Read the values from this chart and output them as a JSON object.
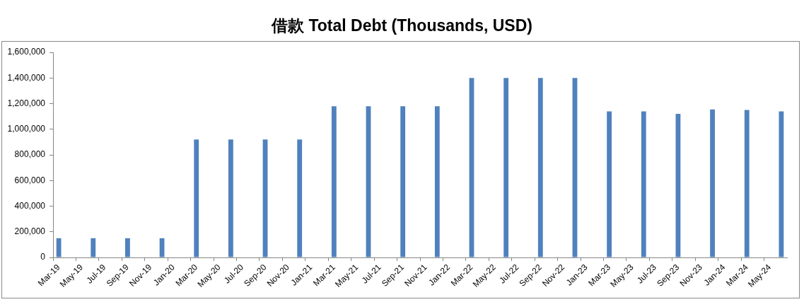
{
  "chart_data": {
    "type": "bar",
    "title": "借款 Total Debt (Thousands, USD)",
    "categories": [
      "Mar-19",
      null,
      "May-19",
      null,
      "Jul-19",
      null,
      "Sep-19",
      null,
      "Nov-19",
      null,
      "Jan-20",
      null,
      "Mar-20",
      null,
      "May-20",
      null,
      "Jul-20",
      null,
      "Sep-20",
      null,
      "Nov-20",
      null,
      "Jan-21",
      null,
      "Mar-21",
      null,
      "May-21",
      null,
      "Jul-21",
      null,
      "Sep-21",
      null,
      "Nov-21",
      null,
      "Jan-22",
      null,
      "Mar-22",
      null,
      "May-22",
      null,
      "Jul-22",
      null,
      "Sep-22",
      null,
      "Nov-22",
      null,
      "Jan-23",
      null,
      "Mar-23",
      null,
      "May-23",
      null,
      "Jul-23",
      null,
      "Sep-23",
      null,
      "Nov-23",
      null,
      "Jan-24",
      null,
      "Mar-24",
      null,
      "May-24",
      null
    ],
    "values": [
      150000,
      null,
      null,
      150000,
      null,
      null,
      150000,
      null,
      null,
      150000,
      null,
      null,
      920000,
      null,
      null,
      920000,
      null,
      null,
      920000,
      null,
      null,
      920000,
      null,
      null,
      1180000,
      null,
      null,
      1180000,
      null,
      null,
      1180000,
      null,
      null,
      1180000,
      null,
      null,
      1400000,
      null,
      null,
      1400000,
      null,
      null,
      1400000,
      null,
      null,
      1400000,
      null,
      null,
      1140000,
      null,
      null,
      1140000,
      null,
      null,
      1120000,
      null,
      null,
      1155000,
      null,
      null,
      1150000,
      null,
      null,
      1140000
    ],
    "color": "#4f81bd",
    "ylim": [
      0,
      1600000
    ],
    "yticks": [
      0,
      {
        "value": 200000,
        "label": "200,000"
      },
      {
        "value": 400000,
        "label": "400,000"
      },
      {
        "value": 600000,
        "label": "600,000"
      },
      {
        "value": 800000,
        "label": "800,000"
      },
      {
        "value": 1000000,
        "label": "1,000,000"
      },
      {
        "value": 1200000,
        "label": "1,200,000"
      },
      {
        "value": 1400000,
        "label": "1,400,000"
      },
      {
        "value": 1600000,
        "label": "1,600,000"
      }
    ],
    "grid": false
  }
}
